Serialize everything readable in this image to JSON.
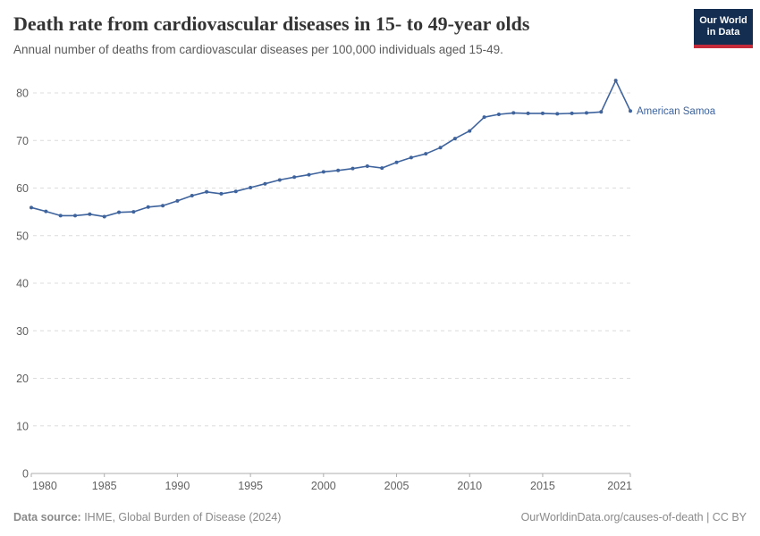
{
  "header": {
    "title": "Death rate from cardiovascular diseases in 15- to 49-year olds",
    "subtitle": "Annual number of deaths from cardiovascular diseases per 100,000 individuals aged 15-49.",
    "logo_line1": "Our World",
    "logo_line2": "in Data"
  },
  "footer": {
    "source_label": "Data source:",
    "source_text": " IHME, Global Burden of Disease (2024)",
    "license_text": "OurWorldinData.org/causes-of-death | CC BY"
  },
  "colors": {
    "line": "#3e639d",
    "series_label": "#3e639d",
    "gridline": "#dcdcdc",
    "axis": "#adadad",
    "tick_label": "#616161",
    "logo_navy": "#142e52",
    "logo_red": "#c52a3a"
  },
  "chart_data": {
    "type": "line",
    "title": "Death rate from cardiovascular diseases in 15- to 49-year olds",
    "subtitle": "Annual number of deaths from cardiovascular diseases per 100,000 individuals aged 15-49.",
    "xlim": [
      1980,
      2021
    ],
    "ylim": [
      0,
      85
    ],
    "x_ticks": [
      1980,
      1985,
      1990,
      1995,
      2000,
      2005,
      2010,
      2015,
      2021
    ],
    "y_ticks": [
      0,
      10,
      20,
      30,
      40,
      50,
      60,
      70,
      80
    ],
    "grid": "horizontal dashed",
    "legend_position": "end-of-line label",
    "series_label": "American Samoa",
    "series": [
      {
        "name": "American Samoa",
        "x": [
          1980,
          1981,
          1982,
          1983,
          1984,
          1985,
          1986,
          1987,
          1988,
          1989,
          1990,
          1991,
          1992,
          1993,
          1994,
          1995,
          1996,
          1997,
          1998,
          1999,
          2000,
          2001,
          2002,
          2003,
          2004,
          2005,
          2006,
          2007,
          2008,
          2009,
          2010,
          2011,
          2012,
          2013,
          2014,
          2015,
          2016,
          2017,
          2018,
          2019,
          2020,
          2021
        ],
        "values": [
          55.9,
          55.1,
          54.2,
          54.2,
          54.5,
          54.0,
          54.9,
          55.0,
          56.0,
          56.3,
          57.3,
          58.4,
          59.2,
          58.8,
          59.3,
          60.1,
          60.9,
          61.7,
          62.3,
          62.8,
          63.4,
          63.7,
          64.1,
          64.6,
          64.2,
          65.4,
          66.4,
          67.2,
          68.5,
          70.4,
          72.0,
          74.9,
          75.5,
          75.8,
          75.7,
          75.7,
          75.6,
          75.7,
          75.8,
          76.0,
          82.6,
          76.2
        ]
      }
    ]
  }
}
